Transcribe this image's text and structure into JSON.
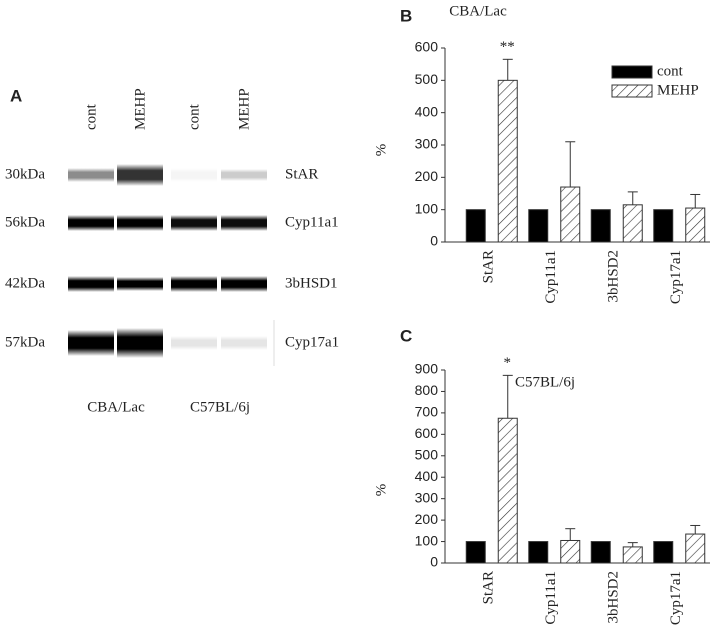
{
  "panel_a": {
    "label": "A",
    "lanes": [
      "cont",
      "MEHP",
      "cont",
      "MEHP"
    ],
    "rows": [
      {
        "size": "30kDa",
        "protein": "StAR"
      },
      {
        "size": "56kDa",
        "protein": "Cyp11a1"
      },
      {
        "size": "42kDa",
        "protein": "3bHSD1"
      },
      {
        "size": "57kDa",
        "protein": "Cyp17a1"
      }
    ],
    "strains": [
      "CBA/Lac",
      "C57BL/6j"
    ]
  },
  "chart_data": [
    {
      "type": "bar",
      "panel_label": "B",
      "title": "CBA/Lac",
      "y_label": "%",
      "categories": [
        "StAR",
        "Cyp11a1",
        "3bHSD2",
        "Cyp17a1"
      ],
      "series": [
        {
          "name": "cont",
          "color": "#000000",
          "values": [
            100,
            100,
            100,
            100
          ]
        },
        {
          "name": "MEHP",
          "color": "#ffffff",
          "hatch": true,
          "values": [
            500,
            170,
            115,
            105
          ],
          "errors": [
            65,
            140,
            40,
            42
          ]
        }
      ],
      "significance": [
        "**",
        null,
        null,
        null
      ],
      "ylim": [
        0,
        600
      ],
      "yticks": [
        0,
        100,
        200,
        300,
        400,
        500,
        600
      ],
      "legend": "upper right"
    },
    {
      "type": "bar",
      "panel_label": "C",
      "title": "C57BL/6j",
      "y_label": "%",
      "categories": [
        "StAR",
        "Cyp11a1",
        "3bHSD2",
        "Cyp17a1"
      ],
      "series": [
        {
          "color": "#000000",
          "values": [
            100,
            100,
            100,
            100
          ]
        },
        {
          "color": "#ffffff",
          "hatch": true,
          "values": [
            675,
            105,
            75,
            135
          ],
          "errors": [
            200,
            55,
            20,
            40
          ]
        }
      ],
      "significance": [
        "*",
        null,
        null,
        null
      ],
      "ylim": [
        0,
        900
      ],
      "yticks": [
        0,
        100,
        200,
        300,
        400,
        500,
        600,
        700,
        800,
        900
      ]
    }
  ]
}
